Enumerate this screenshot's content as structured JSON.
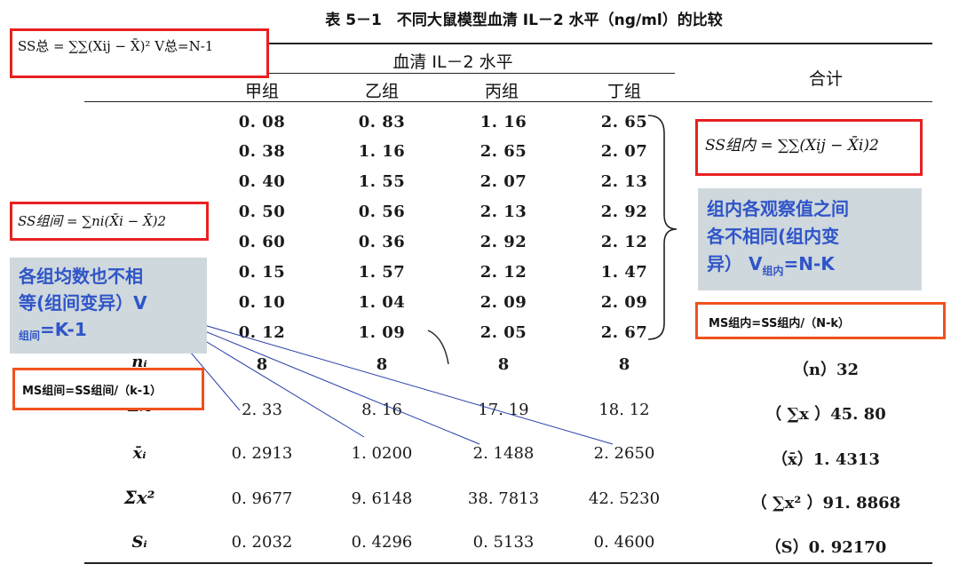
{
  "caption": "表 5－1　不同大鼠模型血清 IL－2 水平（ng/ml）的比较",
  "header": {
    "group_title": "血清 IL－2 水平",
    "total_title": "合计",
    "groups": [
      "甲组",
      "乙组",
      "丙组",
      "丁组"
    ]
  },
  "data_rows": [
    [
      "0. 08",
      "0. 83",
      "1. 16",
      "2. 65"
    ],
    [
      "0. 38",
      "1. 16",
      "2. 65",
      "2. 07"
    ],
    [
      "0. 40",
      "1. 55",
      "2. 07",
      "2. 13"
    ],
    [
      "0. 50",
      "0. 56",
      "2. 13",
      "2. 92"
    ],
    [
      "0. 60",
      "0. 36",
      "2. 92",
      "2. 12"
    ],
    [
      "0. 15",
      "1. 57",
      "2. 12",
      "1. 47"
    ],
    [
      "0. 10",
      "1. 04",
      "2. 09",
      "2. 09"
    ],
    [
      "0. 12",
      "1. 09",
      "2. 05",
      "2. 67"
    ]
  ],
  "stat_rows": [
    {
      "label": "nᵢ",
      "values": [
        "8",
        "8",
        "8",
        "8"
      ],
      "total": "（n）32"
    },
    {
      "label": "Σx",
      "values": [
        "2. 33",
        "8. 16",
        "17. 19",
        "18. 12"
      ],
      "total": "（ ∑x ）45. 80"
    },
    {
      "label": "x̄ᵢ",
      "values": [
        "0. 2913",
        "1. 0200",
        "2. 1488",
        "2. 2650"
      ],
      "total": "（x̄）1. 4313"
    },
    {
      "label": "Σx²",
      "values": [
        "0. 9677",
        "9. 6148",
        "38. 7813",
        "42. 5230"
      ],
      "total": "（ ∑x² ）91. 8868"
    },
    {
      "label": "Sᵢ",
      "values": [
        "0. 2032",
        "0. 4296",
        "0. 5133",
        "0. 4600"
      ],
      "total": "（S）0. 92170"
    }
  ],
  "annotations": {
    "ss_total": "SS总 = ∑∑(Xij − X̄)²   V总=N-1",
    "ss_within": "SS组内 = ∑∑(Xij − X̄i)2",
    "ss_between": "SS组间 = ∑ni(X̄i − X̄)2",
    "within_note_line1": "组内各观察值之间",
    "within_note_line2": "各不相同(组内变",
    "within_note_line3_prefix": "异） V",
    "within_note_line3_sub": "组内",
    "within_note_line3_suffix": "=N-K",
    "between_note_line1": "各组均数也不相",
    "between_note_line2": "等(组间变异）V",
    "between_note_line3_sub": "组间",
    "between_note_line3_suffix": "=K-1",
    "ms_within": "MS组内=SS组内/（N-k）",
    "ms_between": "MS组间=SS组间/（k-1）"
  },
  "colors": {
    "red_border": "#e82020",
    "orange_border": "#f0521e",
    "annotation_blue": "#2f55c8",
    "note_background": "#cfd8dd",
    "connector_line": "#2a3fa8"
  }
}
